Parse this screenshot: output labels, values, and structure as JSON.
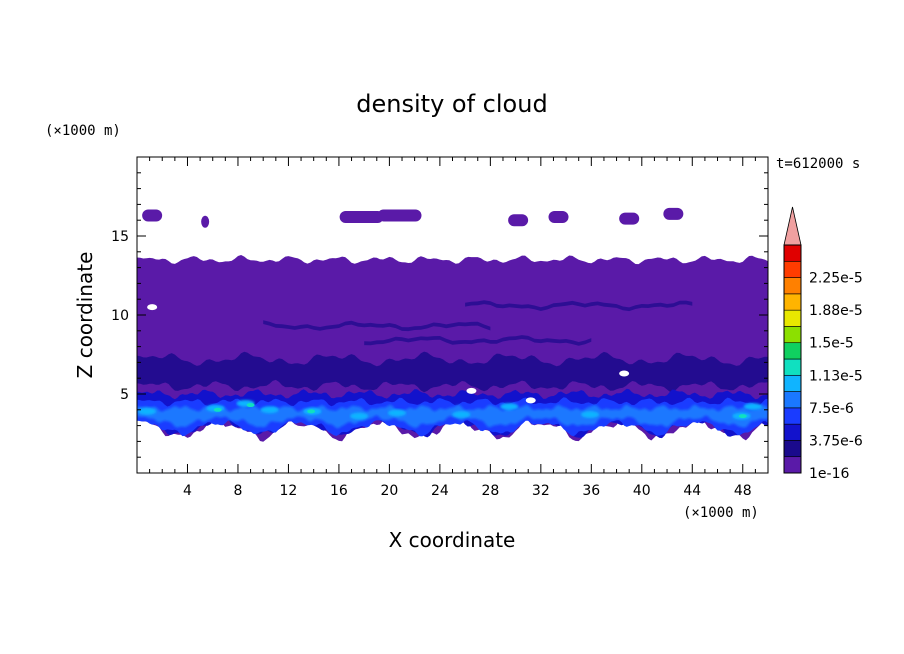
{
  "chart_data": {
    "type": "heatmap",
    "title": "density of cloud",
    "xlabel": "X coordinate",
    "ylabel": "Z coordinate",
    "x_unit": "(×1000 m)",
    "y_unit": "(×1000 m)",
    "time_label": "t=612000 s",
    "xlim": [
      0,
      50
    ],
    "ylim": [
      0,
      20
    ],
    "x_ticks": [
      4,
      8,
      12,
      16,
      20,
      24,
      28,
      32,
      36,
      40,
      44,
      48
    ],
    "y_ticks": [
      5,
      10,
      15
    ],
    "x_tick_labels": [
      "4",
      "8",
      "12",
      "16",
      "20",
      "24",
      "28",
      "32",
      "36",
      "40",
      "44",
      "48"
    ],
    "y_tick_labels": [
      "5",
      "10",
      "15"
    ],
    "colorbar": {
      "levels": [
        1e-16,
        1.875e-06,
        3.75e-06,
        5.625e-06,
        7.5e-06,
        9.375e-06,
        1.125e-05,
        1.3125e-05,
        1.5e-05,
        1.6875e-05,
        1.875e-05,
        2.0625e-05,
        2.25e-05,
        2.4375e-05
      ],
      "labels": [
        "1e-16",
        "3.75e-6",
        "7.5e-6",
        "1.13e-5",
        "1.5e-5",
        "1.88e-5",
        "2.25e-5"
      ],
      "colors": [
        "#5a1aa8",
        "#1a0a8c",
        "#1212cc",
        "#1a3cff",
        "#1a78ff",
        "#10b4ff",
        "#10e0c0",
        "#10d060",
        "#8ce000",
        "#e8e800",
        "#ffb400",
        "#ff8000",
        "#ff3c00",
        "#e00000"
      ],
      "extend_color": "#f0a0a0"
    },
    "regions": {
      "main_layer": {
        "x": [
          0,
          50
        ],
        "z_bottom": 3.2,
        "z_top": 13.5,
        "value": "1e-16"
      },
      "mid_band": {
        "x": [
          0,
          50
        ],
        "z_bottom": 5.5,
        "z_top": 7.2,
        "value": "1.9e-6"
      },
      "lower_band": {
        "x": [
          0,
          50
        ],
        "z_bottom": 2.5,
        "z_top": 5.0,
        "value": "3.75e-6 to 1.13e-5"
      },
      "upper_patches": [
        {
          "x": 1.2,
          "z": 16.3
        },
        {
          "x": 5.4,
          "z": 15.9
        },
        {
          "x": 17.8,
          "z": 16.2
        },
        {
          "x": 20.8,
          "z": 16.3
        },
        {
          "x": 30.2,
          "z": 16.0
        },
        {
          "x": 33.4,
          "z": 16.2
        },
        {
          "x": 39.0,
          "z": 16.1
        },
        {
          "x": 42.5,
          "z": 16.4
        }
      ]
    }
  }
}
